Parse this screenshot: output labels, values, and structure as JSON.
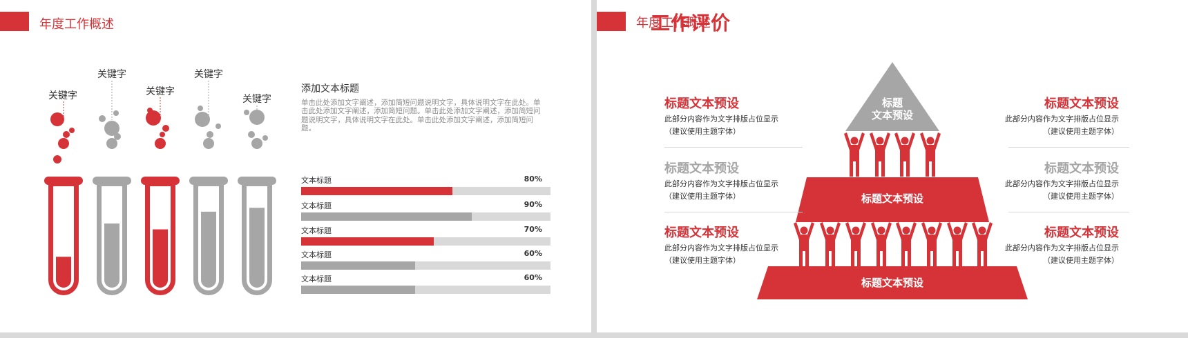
{
  "colors": {
    "accent": "#d63338",
    "gray": "#a6a6a6",
    "track": "#d9d9d9"
  },
  "slide1": {
    "header_title": "年度工作概述",
    "keywords": [
      "关键字",
      "关键字",
      "关键字",
      "关键字",
      "关键字"
    ],
    "tube_levels": [
      0.28,
      0.62,
      0.56,
      0.74,
      0.78
    ],
    "text_title": "添加文本标题",
    "text_body": "单击此处添加文字阐述，添加简短问题说明文字，具体说明文字在此处。单击此处添加文字阐述，添加简短问题。单击此处添加文字阐述，添加简短问题说明文字，具体说明文字在此处。单击此处添加文字阐述，添加简短问题。",
    "progress": [
      {
        "label": "文本标题",
        "percent": "80%",
        "value": 80,
        "color": "red"
      },
      {
        "label": "文本标题",
        "percent": "90%",
        "value": 90,
        "color": "gray"
      },
      {
        "label": "文本标题",
        "percent": "70%",
        "value": 70,
        "color": "red"
      },
      {
        "label": "文本标题",
        "percent": "60%",
        "value": 60,
        "color": "gray"
      },
      {
        "label": "文本标题",
        "percent": "60%",
        "value": 60,
        "color": "gray"
      }
    ]
  },
  "slide2": {
    "header_title": "年度工作概述",
    "main_title": "工作评价",
    "pyramid": {
      "top_line1": "标题",
      "top_line2": "文本预设",
      "middle": "标题文本预设",
      "bottom": "标题文本预设"
    },
    "left_items": [
      {
        "title": "标题文本预设",
        "desc1": "此部分内容作为文字排版占位显示",
        "desc2": "（建议使用主题字体）",
        "color": "red"
      },
      {
        "title": "标题文本预设",
        "desc1": "此部分内容作为文字排版占位显示",
        "desc2": "（建议使用主题字体）",
        "color": "gray"
      },
      {
        "title": "标题文本预设",
        "desc1": "此部分内容作为文字排版占位显示",
        "desc2": "（建议使用主题字体）",
        "color": "red"
      }
    ],
    "right_items": [
      {
        "title": "标题文本预设",
        "desc1": "此部分内容作为文字排版占位显示",
        "desc2": "（建议使用主题字体）",
        "color": "red"
      },
      {
        "title": "标题文本预设",
        "desc1": "此部分内容作为文字排版占位显示",
        "desc2": "（建议使用主题字体）",
        "color": "gray"
      },
      {
        "title": "标题文本预设",
        "desc1": "此部分内容作为文字排版占位显示",
        "desc2": "（建议使用主题字体）",
        "color": "red"
      }
    ]
  }
}
